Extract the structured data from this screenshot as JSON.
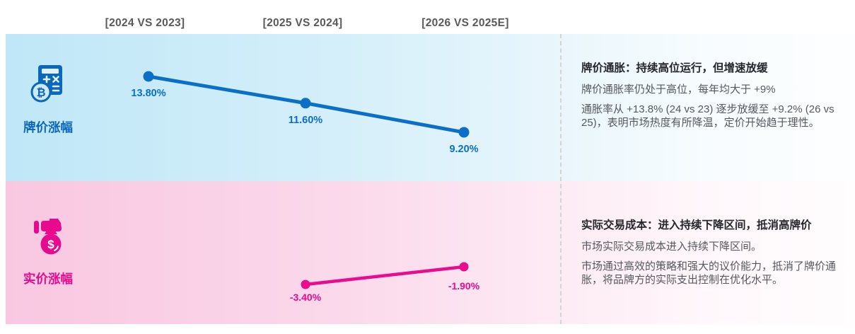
{
  "columns": [
    {
      "label": "[2024 VS 2023]"
    },
    {
      "label": "[2025 VS 2024]"
    },
    {
      "label": "[2026 VS 2025E]"
    }
  ],
  "rows": [
    {
      "label": "牌价涨幅",
      "icon": "calculator-coin-icon",
      "accent": "#0b6fc7",
      "panel": {
        "title": "牌价通胀：持续高位运行，但增速放缓",
        "paragraphs": [
          "牌价通胀率仍处于高位，每年均大于 +9%",
          "通胀率从 +13.8% (24 vs 23) 逐步放缓至 +9.2% (26 vs 25)，表明市场热度有所降温，定价开始趋于理性。"
        ]
      }
    },
    {
      "label": "实价涨幅",
      "icon": "money-bag-hand-icon",
      "accent": "#e80a8e",
      "panel": {
        "title": "实际交易成本：进入持续下降区间，抵消高牌价",
        "paragraphs": [
          "市场实际交易成本进入持续下降区间。",
          "市场通过高效的策略和强大的议价能力，抵消了牌价通胀，将品牌方的实际支出控制在优化水平。"
        ]
      }
    }
  ],
  "chart_data": {
    "type": "line",
    "categories": [
      "2024 VS 2023",
      "2025 VS 2024",
      "2026 VS 2025E"
    ],
    "series": [
      {
        "name": "牌价涨幅",
        "color": "#0b6fc7",
        "points": [
          {
            "col": 0,
            "value": 13.8,
            "label": "13.80%"
          },
          {
            "col": 1,
            "value": 11.6,
            "label": "11.60%"
          },
          {
            "col": 2,
            "value": 9.2,
            "label": "9.20%"
          }
        ]
      },
      {
        "name": "实价涨幅",
        "color": "#ea0c8c",
        "points": [
          {
            "col": 1,
            "value": -3.4,
            "label": "-3.40%"
          },
          {
            "col": 2,
            "value": -1.9,
            "label": "-1.90%"
          }
        ]
      }
    ],
    "title": "",
    "xlabel": "",
    "ylabel": "",
    "legend_position": "left-row-labels",
    "grid": false,
    "value_unit": "%"
  },
  "colors": {
    "brand_blue": "#0b6fc7",
    "brand_pink": "#e80a8e",
    "band_blue_left": "#bfe7f7",
    "band_pink_left": "#f9c7e1",
    "header_gray": "#58595b",
    "body_gray": "#55585e"
  }
}
